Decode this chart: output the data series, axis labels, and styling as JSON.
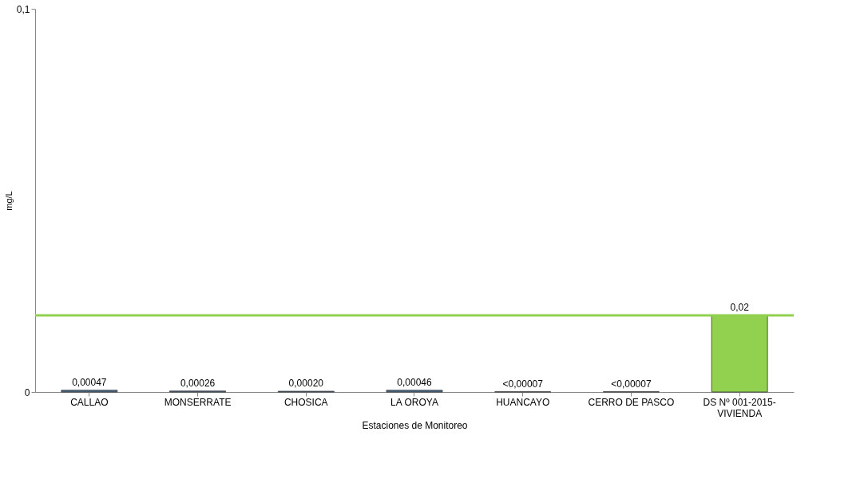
{
  "chart_data": {
    "type": "bar",
    "xlabel": "Estaciones de Monitoreo",
    "ylabel": "mg/L",
    "categories": [
      "CALLAO",
      "MONSERRATE",
      "CHOSICA",
      "LA OROYA",
      "HUANCAYO",
      "CERRO DE PASCO",
      "DS Nº 001-2015-VIVIENDA"
    ],
    "values": [
      0.00047,
      0.00026,
      0.0002,
      0.00046,
      7e-05,
      7e-05,
      0.02
    ],
    "colors": [
      "#4f6f8f",
      "#4f6f8f",
      "#4f6f8f",
      "#4f6f8f",
      "#4f6f8f",
      "#4f6f8f",
      "#92d050"
    ],
    "value_labels": [
      "0,00047",
      "0,00026",
      "0,00020",
      "0,00046",
      "<0,00007",
      "<0,00007",
      "0,02"
    ],
    "ylim": [
      0,
      0.1
    ],
    "yticks": [
      0,
      {
        "value": 0.1,
        "label": "0,1"
      }
    ],
    "ref_lines": [
      {
        "axis": "y",
        "value": 0.02,
        "color": "#92d050"
      }
    ],
    "grid": false
  }
}
